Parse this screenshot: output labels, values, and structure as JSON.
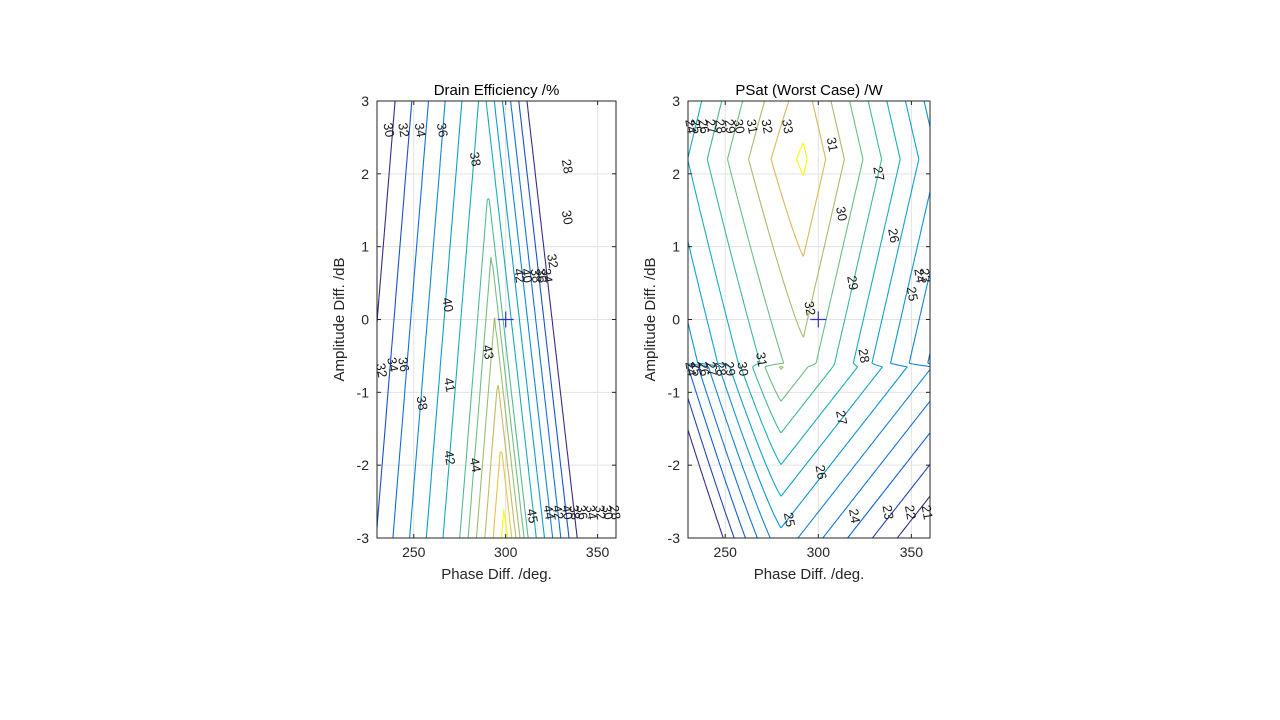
{
  "chart_data": [
    {
      "type": "contour",
      "title": "Drain Efficiency /%",
      "xlabel": "Phase Diff. /deg.",
      "ylabel": "Amplitude Diff. /dB",
      "xlim": [
        230,
        360
      ],
      "ylim": [
        -3,
        3
      ],
      "xticks": [
        250,
        300,
        350
      ],
      "yticks": [
        -3,
        -2,
        -1,
        0,
        1,
        2,
        3
      ],
      "grid": true,
      "marker": {
        "shape": "plus",
        "x": 300,
        "y": 0,
        "color": "#3333cc"
      },
      "peak": {
        "x": 300,
        "y": -3,
        "value": 45.5
      },
      "slope_left_per_deg": 0.22,
      "slope_right_per_deg": 0.45,
      "peak_shift_per_db": -2.0,
      "peak_drop_per_db": 1.15,
      "levels": [
        28,
        30,
        32,
        34,
        36,
        38,
        40,
        41,
        42,
        43,
        44,
        45
      ],
      "labels": [
        {
          "text": "30",
          "x": 236,
          "y": 2.6
        },
        {
          "text": "32",
          "x": 244,
          "y": 2.6
        },
        {
          "text": "34",
          "x": 253,
          "y": 2.6
        },
        {
          "text": "36",
          "x": 265,
          "y": 2.6
        },
        {
          "text": "38",
          "x": 283,
          "y": 2.2
        },
        {
          "text": "28",
          "x": 333,
          "y": 2.1
        },
        {
          "text": "30",
          "x": 333,
          "y": 1.4
        },
        {
          "text": "32",
          "x": 325,
          "y": 0.8
        },
        {
          "text": "34",
          "x": 322,
          "y": 0.6
        },
        {
          "text": "36",
          "x": 319,
          "y": 0.6
        },
        {
          "text": "38",
          "x": 316,
          "y": 0.6
        },
        {
          "text": "40",
          "x": 311,
          "y": 0.6
        },
        {
          "text": "42",
          "x": 307,
          "y": 0.6
        },
        {
          "text": "40",
          "x": 268,
          "y": 0.2
        },
        {
          "text": "43",
          "x": 290,
          "y": -0.45
        },
        {
          "text": "32",
          "x": 232,
          "y": -0.7
        },
        {
          "text": "34",
          "x": 238,
          "y": -0.62
        },
        {
          "text": "36",
          "x": 244,
          "y": -0.62
        },
        {
          "text": "38",
          "x": 254,
          "y": -1.15
        },
        {
          "text": "41",
          "x": 269,
          "y": -0.9
        },
        {
          "text": "42",
          "x": 269,
          "y": -1.9
        },
        {
          "text": "44",
          "x": 283,
          "y": -2.0
        },
        {
          "text": "45",
          "x": 314,
          "y": -2.7
        },
        {
          "text": "44",
          "x": 323,
          "y": -2.65
        },
        {
          "text": "42",
          "x": 328,
          "y": -2.65
        },
        {
          "text": "40",
          "x": 333,
          "y": -2.65
        },
        {
          "text": "38",
          "x": 337,
          "y": -2.65
        },
        {
          "text": "36",
          "x": 341,
          "y": -2.65
        },
        {
          "text": "34",
          "x": 346,
          "y": -2.65
        },
        {
          "text": "32",
          "x": 351,
          "y": -2.65
        },
        {
          "text": "30",
          "x": 355,
          "y": -2.65
        },
        {
          "text": "28",
          "x": 359,
          "y": -2.65
        }
      ]
    },
    {
      "type": "contour",
      "title": "PSat (Worst Case) /W",
      "xlabel": "Phase Diff. /deg.",
      "ylabel": "Amplitude Diff. /dB",
      "xlim": [
        230,
        360
      ],
      "ylim": [
        -3,
        3
      ],
      "xticks": [
        250,
        300,
        350
      ],
      "yticks": [
        -3,
        -2,
        -1,
        0,
        1,
        2,
        3
      ],
      "grid": true,
      "marker": {
        "shape": "plus",
        "x": 300,
        "y": 0,
        "color": "#3333cc"
      },
      "ridge": {
        "x": 283,
        "y": 2.5,
        "value": 33.2
      },
      "levels": [
        21,
        22,
        23,
        24,
        25,
        26,
        27,
        28,
        29,
        30,
        31,
        32,
        33
      ],
      "labels": [
        {
          "text": "24",
          "x": 231,
          "y": 2.65
        },
        {
          "text": "25",
          "x": 234,
          "y": 2.65
        },
        {
          "text": "26",
          "x": 238,
          "y": 2.65
        },
        {
          "text": "27",
          "x": 242,
          "y": 2.65
        },
        {
          "text": "28",
          "x": 247,
          "y": 2.65
        },
        {
          "text": "29",
          "x": 252,
          "y": 2.65
        },
        {
          "text": "30",
          "x": 257,
          "y": 2.65
        },
        {
          "text": "31",
          "x": 264,
          "y": 2.65
        },
        {
          "text": "32",
          "x": 272,
          "y": 2.65
        },
        {
          "text": "33",
          "x": 283,
          "y": 2.65
        },
        {
          "text": "31",
          "x": 307,
          "y": 2.4
        },
        {
          "text": "30",
          "x": 312,
          "y": 1.45
        },
        {
          "text": "27",
          "x": 332,
          "y": 2.0
        },
        {
          "text": "26",
          "x": 340,
          "y": 1.15
        },
        {
          "text": "29",
          "x": 318,
          "y": 0.5
        },
        {
          "text": "25",
          "x": 350,
          "y": 0.35
        },
        {
          "text": "24",
          "x": 354,
          "y": 0.6
        },
        {
          "text": "23",
          "x": 357,
          "y": 0.6
        },
        {
          "text": "32",
          "x": 295,
          "y": 0.15
        },
        {
          "text": "28",
          "x": 324,
          "y": -0.5
        },
        {
          "text": "24",
          "x": 231,
          "y": -0.68
        },
        {
          "text": "25",
          "x": 234,
          "y": -0.68
        },
        {
          "text": "26",
          "x": 238,
          "y": -0.68
        },
        {
          "text": "27",
          "x": 242,
          "y": -0.68
        },
        {
          "text": "28",
          "x": 247,
          "y": -0.68
        },
        {
          "text": "29",
          "x": 252,
          "y": -0.68
        },
        {
          "text": "30",
          "x": 259,
          "y": -0.68
        },
        {
          "text": "31",
          "x": 269,
          "y": -0.55
        },
        {
          "text": "27",
          "x": 312,
          "y": -1.35
        },
        {
          "text": "26",
          "x": 301,
          "y": -2.1
        },
        {
          "text": "25",
          "x": 284,
          "y": -2.75
        },
        {
          "text": "24",
          "x": 319,
          "y": -2.7
        },
        {
          "text": "23",
          "x": 337,
          "y": -2.65
        },
        {
          "text": "22",
          "x": 349,
          "y": -2.65
        },
        {
          "text": "21",
          "x": 358,
          "y": -2.65
        }
      ]
    }
  ]
}
